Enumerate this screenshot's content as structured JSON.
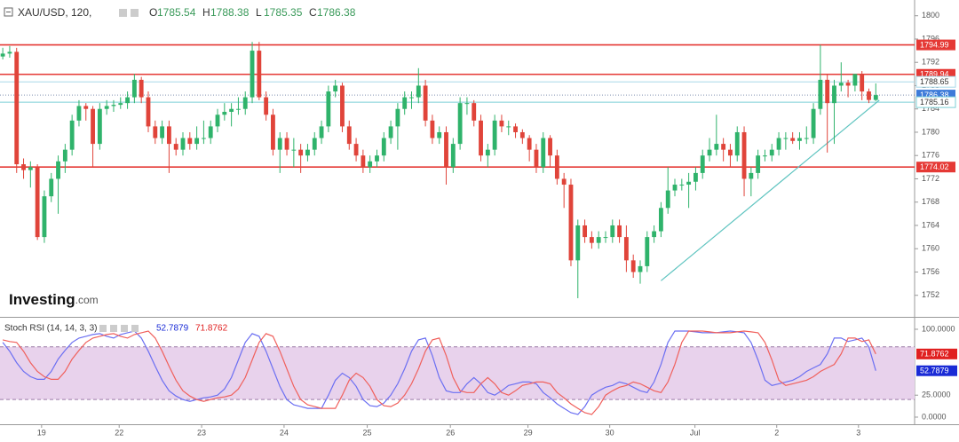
{
  "header": {
    "symbol": "XAU/USD, 120,",
    "ohlc": [
      {
        "label": "O",
        "value": 1785.54
      },
      {
        "label": "H",
        "value": 1788.38
      },
      {
        "label": "L",
        "value": 1785.35
      },
      {
        "label": "C",
        "value": 1786.38
      }
    ],
    "watermark": "Investing",
    "watermark_suffix": ".com"
  },
  "chart_data": [
    {
      "type": "candlestick",
      "up_color": "#2fb36b",
      "down_color": "#e0443a",
      "xlim": [
        -0.4,
        131.6
      ],
      "ylim": [
        1748.3,
        1802.7
      ],
      "yticks": [
        1752,
        1756,
        1760,
        1764,
        1768,
        1772,
        1776,
        1780,
        1784,
        1788,
        1792,
        1796,
        1800
      ],
      "xticks": [
        {
          "value": 5.6,
          "label": "19"
        },
        {
          "value": 16.8,
          "label": "22"
        },
        {
          "value": 28.7,
          "label": "23"
        },
        {
          "value": 40.6,
          "label": "24"
        },
        {
          "value": 52.6,
          "label": "25"
        },
        {
          "value": 64.6,
          "label": "26"
        },
        {
          "value": 75.8,
          "label": "29"
        },
        {
          "value": 87.6,
          "label": "30"
        },
        {
          "value": 99.9,
          "label": "Jul"
        },
        {
          "value": 111.7,
          "label": "2"
        },
        {
          "value": 123.5,
          "label": "3"
        }
      ],
      "levels": [
        {
          "value": 1794.99,
          "color": "#e53935",
          "style": "solid",
          "tag": "#e53935"
        },
        {
          "value": 1789.94,
          "color": "#e53935",
          "style": "solid",
          "tag": "#e53935"
        },
        {
          "value": 1788.65,
          "color": "#a8d8e8",
          "style": "solid",
          "tag": "#ffffff"
        },
        {
          "value": 1786.38,
          "color": "#8090b0",
          "style": "dotted",
          "tag": "#3d7bd9"
        },
        {
          "value": 1785.16,
          "color": "#7ccfd6",
          "style": "solid",
          "tag": "#ffffff"
        },
        {
          "value": 1774.02,
          "color": "#e53935",
          "style": "solid",
          "tag": "#e53935"
        }
      ],
      "trendline": {
        "x": [
          95,
          126.5
        ],
        "y": [
          1754.5,
          1785.5
        ],
        "color": "#5fc4c0"
      },
      "candles": [
        [
          1793,
          1794.5,
          1792.5,
          1793.5
        ],
        [
          1793.5,
          1794.8,
          1792.8,
          1793.8
        ],
        [
          1793.8,
          1794.5,
          1773,
          1774.5
        ],
        [
          1774.5,
          1775.5,
          1772,
          1773.5
        ],
        [
          1773.5,
          1775,
          1770.5,
          1774
        ],
        [
          1774,
          1774.5,
          1761.5,
          1762
        ],
        [
          1762,
          1770,
          1761,
          1769
        ],
        [
          1769,
          1773,
          1768,
          1772
        ],
        [
          1772,
          1776,
          1766,
          1775
        ],
        [
          1775,
          1778,
          1773,
          1777
        ],
        [
          1777,
          1783,
          1776,
          1782
        ],
        [
          1782,
          1785.5,
          1781,
          1784.5
        ],
        [
          1784.5,
          1785,
          1782,
          1784
        ],
        [
          1784,
          1784.5,
          1774,
          1778
        ],
        [
          1778,
          1785,
          1777,
          1784
        ],
        [
          1784,
          1785.5,
          1783,
          1784.5
        ],
        [
          1784.5,
          1785.5,
          1783.5,
          1784.7
        ],
        [
          1784.7,
          1786,
          1784,
          1785
        ],
        [
          1785,
          1787,
          1784,
          1786
        ],
        [
          1786,
          1790,
          1785,
          1789
        ],
        [
          1789,
          1789.5,
          1785,
          1786
        ],
        [
          1786,
          1787,
          1780,
          1781
        ],
        [
          1781,
          1782,
          1778,
          1779
        ],
        [
          1779,
          1782,
          1778,
          1781
        ],
        [
          1781,
          1782,
          1773,
          1778
        ],
        [
          1778,
          1779,
          1776,
          1777
        ],
        [
          1777,
          1780,
          1776,
          1779
        ],
        [
          1779,
          1780,
          1777,
          1778
        ],
        [
          1778,
          1781,
          1777,
          1779
        ],
        [
          1779,
          1782,
          1778,
          1779
        ],
        [
          1779,
          1782,
          1778,
          1781
        ],
        [
          1781,
          1784,
          1780,
          1783
        ],
        [
          1783,
          1785,
          1782,
          1783.5
        ],
        [
          1783.5,
          1785,
          1781,
          1784
        ],
        [
          1784,
          1786,
          1783,
          1784
        ],
        [
          1784,
          1787,
          1783,
          1786
        ],
        [
          1786,
          1795.5,
          1785,
          1794
        ],
        [
          1794,
          1795.5,
          1785.5,
          1786
        ],
        [
          1786,
          1787,
          1782,
          1783
        ],
        [
          1783,
          1784,
          1776,
          1777
        ],
        [
          1777,
          1780,
          1773,
          1779
        ],
        [
          1779,
          1780,
          1776,
          1777
        ],
        [
          1777,
          1779,
          1774,
          1777
        ],
        [
          1777,
          1778,
          1773,
          1776
        ],
        [
          1776,
          1778,
          1775,
          1777
        ],
        [
          1777,
          1780,
          1776,
          1779
        ],
        [
          1779,
          1782,
          1778,
          1781
        ],
        [
          1781,
          1788,
          1780,
          1787
        ],
        [
          1787,
          1789,
          1786,
          1788
        ],
        [
          1788,
          1788.5,
          1780,
          1781
        ],
        [
          1781,
          1782,
          1777,
          1778
        ],
        [
          1778,
          1779,
          1775,
          1776
        ],
        [
          1776,
          1777,
          1773,
          1774
        ],
        [
          1774,
          1776,
          1773,
          1775
        ],
        [
          1775,
          1777,
          1774,
          1776
        ],
        [
          1776,
          1780,
          1775,
          1779
        ],
        [
          1779,
          1782,
          1778,
          1781
        ],
        [
          1781,
          1785,
          1777,
          1784
        ],
        [
          1784,
          1787,
          1783,
          1786
        ],
        [
          1786,
          1787,
          1784,
          1786
        ],
        [
          1786,
          1791,
          1785,
          1788
        ],
        [
          1788,
          1789,
          1781,
          1782
        ],
        [
          1782,
          1783,
          1778,
          1779
        ],
        [
          1779,
          1781,
          1778,
          1780
        ],
        [
          1780,
          1781,
          1771,
          1774
        ],
        [
          1774,
          1779,
          1773,
          1778
        ],
        [
          1778,
          1786,
          1777,
          1785
        ],
        [
          1785,
          1786,
          1783,
          1785
        ],
        [
          1785,
          1785.5,
          1781,
          1782
        ],
        [
          1782,
          1783,
          1775,
          1776
        ],
        [
          1776,
          1778,
          1774,
          1777
        ],
        [
          1777,
          1783,
          1776,
          1782
        ],
        [
          1782,
          1783,
          1780,
          1781
        ],
        [
          1781,
          1782,
          1779.5,
          1781
        ],
        [
          1781,
          1781.5,
          1779,
          1780
        ],
        [
          1780,
          1780.5,
          1778,
          1779
        ],
        [
          1779,
          1779.5,
          1775,
          1777
        ],
        [
          1777,
          1778,
          1773,
          1774
        ],
        [
          1774,
          1780,
          1773,
          1779
        ],
        [
          1779,
          1779.5,
          1774,
          1776
        ],
        [
          1776,
          1777,
          1771,
          1772
        ],
        [
          1772,
          1773,
          1767,
          1771
        ],
        [
          1771,
          1772,
          1757,
          1758
        ],
        [
          1758,
          1765,
          1751.5,
          1764
        ],
        [
          1764,
          1765,
          1761,
          1762
        ],
        [
          1762,
          1763,
          1760,
          1761
        ],
        [
          1761,
          1763,
          1760,
          1762
        ],
        [
          1762,
          1763,
          1761,
          1762
        ],
        [
          1762,
          1765,
          1761,
          1764
        ],
        [
          1764,
          1765,
          1761,
          1762
        ],
        [
          1762,
          1764,
          1756,
          1758
        ],
        [
          1758,
          1759,
          1755,
          1756
        ],
        [
          1756,
          1758,
          1754,
          1757
        ],
        [
          1757,
          1763,
          1756,
          1762
        ],
        [
          1762,
          1764,
          1761,
          1763
        ],
        [
          1763,
          1768,
          1762,
          1767
        ],
        [
          1767,
          1774,
          1766,
          1770
        ],
        [
          1770,
          1772,
          1769,
          1771
        ],
        [
          1771,
          1772,
          1770,
          1771
        ],
        [
          1771,
          1773,
          1767,
          1771.5
        ],
        [
          1771.5,
          1774,
          1770,
          1773
        ],
        [
          1773,
          1777,
          1772,
          1776
        ],
        [
          1776,
          1779,
          1775,
          1777
        ],
        [
          1777,
          1783,
          1776,
          1778
        ],
        [
          1778,
          1779,
          1775,
          1777
        ],
        [
          1777,
          1778,
          1774,
          1776
        ],
        [
          1776,
          1781,
          1775,
          1780
        ],
        [
          1780,
          1781,
          1769,
          1772
        ],
        [
          1772,
          1774,
          1769,
          1773
        ],
        [
          1773,
          1777,
          1772,
          1776
        ],
        [
          1776,
          1777,
          1775,
          1776
        ],
        [
          1776,
          1778,
          1775,
          1777
        ],
        [
          1777,
          1780,
          1776,
          1779
        ],
        [
          1779,
          1780,
          1777,
          1779
        ],
        [
          1779,
          1780,
          1778,
          1778.5
        ],
        [
          1778.5,
          1780,
          1777,
          1779
        ],
        [
          1779,
          1781,
          1778,
          1779
        ],
        [
          1779,
          1785,
          1778,
          1784
        ],
        [
          1784,
          1795,
          1783,
          1789
        ],
        [
          1789,
          1790,
          1776.5,
          1785
        ],
        [
          1785,
          1789,
          1778,
          1788
        ],
        [
          1788,
          1792,
          1787,
          1788.5
        ],
        [
          1788.5,
          1789,
          1786,
          1788
        ],
        [
          1788,
          1790,
          1787,
          1790
        ],
        [
          1790,
          1790.5,
          1785.5,
          1787
        ],
        [
          1787,
          1787.5,
          1785,
          1785.54
        ],
        [
          1785.54,
          1788.38,
          1785.35,
          1786.38
        ]
      ]
    },
    {
      "type": "line",
      "title": "Stoch RSI (14, 14, 3, 3)",
      "xlim": [
        -0.4,
        131.6
      ],
      "ylim": [
        -8.1,
        113.1
      ],
      "yticks": [
        {
          "value": 100,
          "label": "100.0000"
        },
        {
          "value": 25,
          "label": "25.0000"
        },
        {
          "value": 0,
          "label": "0.0000"
        }
      ],
      "bands": [
        20,
        80
      ],
      "band_color": "#e8d2ec",
      "series": [
        {
          "name": "K",
          "color": "#6b6ff2",
          "tag": "#1a2bd6",
          "values": [
            85,
            75,
            62,
            52,
            46,
            43,
            43,
            52,
            66,
            76,
            85,
            90,
            92,
            94,
            95,
            92,
            90,
            94,
            96,
            98,
            90,
            75,
            58,
            42,
            30,
            24,
            20,
            18,
            20,
            22,
            23,
            25,
            32,
            45,
            65,
            85,
            95,
            92,
            75,
            55,
            35,
            20,
            14,
            12,
            10,
            10,
            10,
            25,
            42,
            50,
            45,
            35,
            20,
            13,
            12,
            16,
            25,
            38,
            55,
            75,
            88,
            90,
            70,
            45,
            30,
            28,
            28,
            38,
            45,
            38,
            28,
            25,
            30,
            36,
            38,
            40,
            40,
            38,
            28,
            22,
            15,
            10,
            5,
            3,
            12,
            25,
            30,
            34,
            36,
            40,
            38,
            34,
            30,
            28,
            40,
            60,
            85,
            98,
            98,
            98,
            97,
            96,
            96,
            96,
            97,
            98,
            97,
            96,
            85,
            65,
            42,
            36,
            38,
            40,
            42,
            46,
            52,
            56,
            60,
            72,
            90,
            90,
            86,
            88,
            90,
            80,
            52.7879
          ]
        },
        {
          "name": "D",
          "color": "#f0605c",
          "tag": "#e02020",
          "values": [
            88,
            86,
            85,
            75,
            62,
            52,
            46,
            43,
            43,
            52,
            66,
            76,
            85,
            90,
            92,
            94,
            95,
            92,
            90,
            94,
            96,
            98,
            90,
            75,
            58,
            42,
            30,
            24,
            20,
            18,
            20,
            22,
            23,
            25,
            32,
            45,
            65,
            85,
            95,
            92,
            75,
            55,
            35,
            20,
            14,
            12,
            10,
            10,
            10,
            25,
            42,
            50,
            45,
            35,
            20,
            13,
            12,
            16,
            25,
            38,
            55,
            75,
            88,
            90,
            70,
            45,
            30,
            28,
            28,
            38,
            45,
            38,
            28,
            25,
            30,
            36,
            38,
            40,
            40,
            38,
            28,
            22,
            15,
            10,
            5,
            3,
            12,
            25,
            30,
            34,
            36,
            40,
            38,
            34,
            30,
            28,
            40,
            60,
            85,
            98,
            98,
            98,
            97,
            96,
            96,
            96,
            97,
            98,
            97,
            96,
            85,
            65,
            42,
            36,
            38,
            40,
            42,
            46,
            52,
            56,
            60,
            72,
            90,
            90,
            86,
            88,
            71.8762
          ]
        }
      ]
    }
  ]
}
